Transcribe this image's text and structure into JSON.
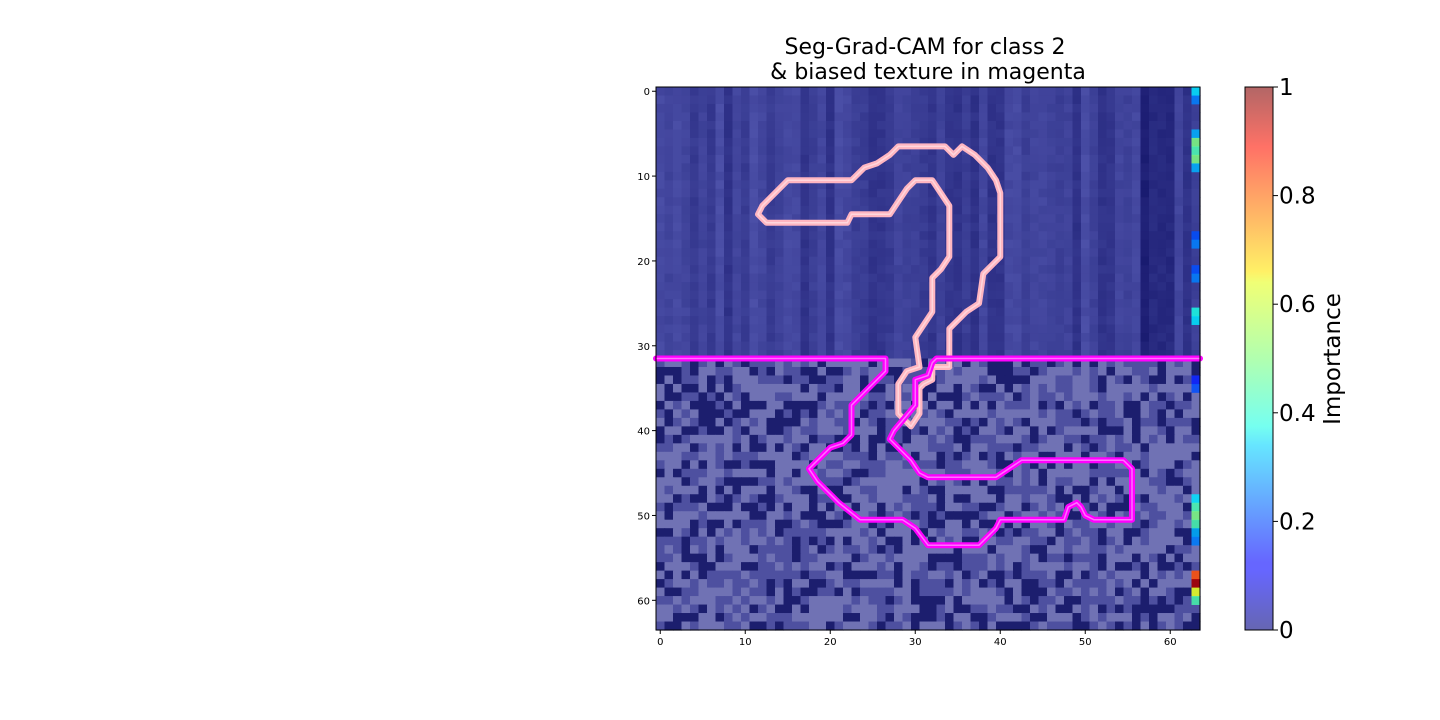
{
  "chart_data": {
    "type": "heatmap",
    "title_lines": [
      "Seg-Grad-CAM for class 2",
      "& biased texture in magenta"
    ],
    "xlabel": "",
    "ylabel": "",
    "grid_size": [
      64,
      64
    ],
    "xlim": [
      -0.5,
      63.5
    ],
    "ylim": [
      63.5,
      -0.5
    ],
    "x_ticks": [
      0,
      10,
      20,
      30,
      40,
      50,
      60
    ],
    "y_ticks": [
      0,
      10,
      20,
      30,
      40,
      50,
      60
    ],
    "colorbar": {
      "label": "Importance",
      "range": [
        0,
        1
      ],
      "ticks": [
        "0",
        "0.2",
        "0.4",
        "0.6",
        "0.8",
        "1"
      ],
      "colormap": "jet",
      "alpha": 0.6
    },
    "background": {
      "upper_rows": [
        0,
        31
      ],
      "lower_rows": [
        32,
        63
      ],
      "upper_texture": "vertical stripes",
      "lower_texture": "checkerboard noise",
      "dark_stripe_columns": [
        57,
        60
      ]
    },
    "importance_right_column": {
      "column": 63,
      "rows": [
        0,
        1,
        5,
        6,
        7,
        8,
        9,
        17,
        18,
        21,
        22,
        26,
        27,
        34,
        35,
        48,
        49,
        50,
        51,
        52,
        53,
        57,
        58,
        59,
        60
      ],
      "values": [
        0.35,
        0.25,
        0.3,
        0.5,
        0.45,
        0.5,
        0.3,
        0.2,
        0.25,
        0.2,
        0.25,
        0.4,
        0.35,
        0.15,
        0.2,
        0.35,
        0.45,
        0.5,
        0.45,
        0.3,
        0.25,
        0.8,
        0.95,
        0.6,
        0.45
      ]
    },
    "contours": [
      {
        "name": "class 2 mask",
        "color": "#ffb6c1",
        "points": [
          [
            11.5,
            14.5
          ],
          [
            12,
            13.5
          ],
          [
            13,
            12.5
          ],
          [
            14,
            11.5
          ],
          [
            15,
            10.5
          ],
          [
            22.5,
            10.5
          ],
          [
            24,
            9
          ],
          [
            25.5,
            8.5
          ],
          [
            27,
            7.5
          ],
          [
            28,
            6.5
          ],
          [
            33.5,
            6.5
          ],
          [
            34.5,
            7.5
          ],
          [
            35.5,
            6.5
          ],
          [
            37,
            7.5
          ],
          [
            38.5,
            9
          ],
          [
            39.5,
            10.5
          ],
          [
            40,
            12
          ],
          [
            40,
            19.5
          ],
          [
            39,
            20.5
          ],
          [
            38,
            21.5
          ],
          [
            37.5,
            25
          ],
          [
            36,
            26
          ],
          [
            34,
            28
          ],
          [
            34,
            32.5
          ],
          [
            32,
            32.5
          ],
          [
            32,
            34
          ],
          [
            31,
            34.5
          ],
          [
            30.5,
            35
          ],
          [
            30.5,
            38
          ],
          [
            29.5,
            39.5
          ],
          [
            28,
            38
          ],
          [
            28,
            34.5
          ],
          [
            29,
            33
          ],
          [
            30.5,
            32.5
          ],
          [
            30,
            29
          ],
          [
            32,
            26
          ],
          [
            32,
            22
          ],
          [
            33,
            21
          ],
          [
            34,
            19.5
          ],
          [
            34,
            13.5
          ],
          [
            33,
            12
          ],
          [
            32,
            10.5
          ],
          [
            30,
            10.5
          ],
          [
            29,
            11.5
          ],
          [
            28,
            13
          ],
          [
            27,
            14.5
          ],
          [
            22.5,
            14.5
          ],
          [
            22,
            15.5
          ],
          [
            12.5,
            15.5
          ]
        ]
      },
      {
        "name": "biased texture",
        "color": "#ff00ff",
        "points": [
          [
            -0.5,
            31.5
          ],
          [
            26.5,
            31.5
          ],
          [
            26.5,
            33
          ],
          [
            24,
            35.5
          ],
          [
            22.5,
            37
          ],
          [
            22.5,
            40.5
          ],
          [
            21.5,
            41.5
          ],
          [
            20,
            42
          ],
          [
            17.5,
            44.5
          ],
          [
            18.5,
            46
          ],
          [
            21,
            48.5
          ],
          [
            23.5,
            50.5
          ],
          [
            28.5,
            50.5
          ],
          [
            30,
            51.5
          ],
          [
            31.5,
            53.5
          ],
          [
            37.5,
            53.5
          ],
          [
            39.5,
            51.5
          ],
          [
            40,
            50.5
          ],
          [
            47.5,
            50.5
          ],
          [
            48,
            49
          ],
          [
            49,
            48.5
          ],
          [
            49.5,
            49
          ],
          [
            50,
            50
          ],
          [
            51,
            50.5
          ],
          [
            55.5,
            50.5
          ],
          [
            55.5,
            44.5
          ],
          [
            54.5,
            43.5
          ],
          [
            42.5,
            43.5
          ],
          [
            41,
            44.5
          ],
          [
            39.5,
            45.5
          ],
          [
            31.5,
            45.5
          ],
          [
            30.5,
            45
          ],
          [
            29.5,
            43.5
          ],
          [
            27,
            41
          ],
          [
            27.5,
            40
          ],
          [
            30,
            37
          ],
          [
            30,
            34
          ],
          [
            31.5,
            33.5
          ],
          [
            32,
            32
          ],
          [
            32.5,
            31.5
          ],
          [
            63.5,
            31.5
          ]
        ]
      }
    ]
  }
}
